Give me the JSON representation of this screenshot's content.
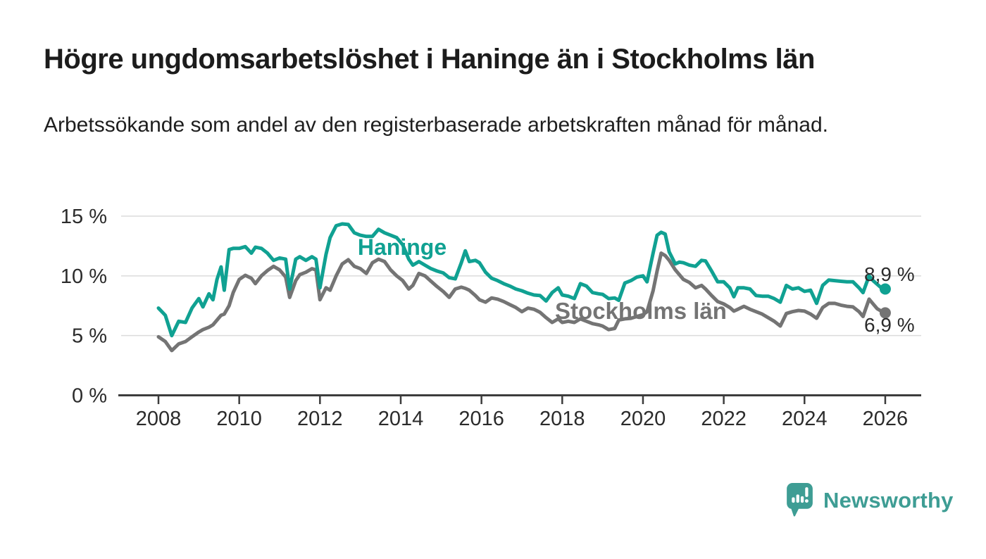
{
  "page": {
    "title": "Högre ungdomsarbetslöshet i Haninge än i Stockholms län",
    "subtitle": "Arbetssökande som andel av den registerbaserade arbetskraften månad för månad.",
    "brand": "Newsworthy"
  },
  "colors": {
    "haninge": "#10a192",
    "stockholm": "#747474",
    "grid": "#dbdbdb",
    "axis": "#3c3c3c",
    "tick_text": "#2b2b2b",
    "end_label_text": "#2b2b2b",
    "logo": "#3e9d94",
    "background": "#ffffff"
  },
  "chart_data": {
    "type": "line",
    "title": "Högre ungdomsarbetslöshet i Haninge än i Stockholms län",
    "subtitle": "Arbetssökande som andel av den registerbaserade arbetskraften månad för månad.",
    "unit": "%",
    "xlabel": "",
    "ylabel": "",
    "xlim": [
      2008,
      2026.9
    ],
    "ylim": [
      0,
      15.8
    ],
    "grid": "horizontal",
    "legend": "inline-labels",
    "x_ticks": [
      2008,
      2010,
      2012,
      2014,
      2016,
      2018,
      2020,
      2022,
      2024,
      2026
    ],
    "y_ticks": [
      0,
      5,
      10,
      15
    ],
    "y_tick_labels": [
      "0 %",
      "5 %",
      "10 %",
      "15 %"
    ],
    "x": [
      2008.0,
      2008.17,
      2008.33,
      2008.5,
      2008.67,
      2008.83,
      2009.0,
      2009.1,
      2009.25,
      2009.35,
      2009.45,
      2009.55,
      2009.63,
      2009.75,
      2009.85,
      2010.0,
      2010.15,
      2010.3,
      2010.4,
      2010.55,
      2010.7,
      2010.85,
      2011.0,
      2011.15,
      2011.25,
      2011.4,
      2011.5,
      2011.65,
      2011.8,
      2011.9,
      2012.0,
      2012.15,
      2012.25,
      2012.4,
      2012.55,
      2012.7,
      2012.85,
      2013.0,
      2013.15,
      2013.3,
      2013.45,
      2013.6,
      2013.75,
      2013.9,
      2014.05,
      2014.2,
      2014.3,
      2014.45,
      2014.6,
      2014.75,
      2014.9,
      2015.05,
      2015.2,
      2015.35,
      2015.5,
      2015.6,
      2015.7,
      2015.85,
      2015.95,
      2016.1,
      2016.25,
      2016.4,
      2016.55,
      2016.7,
      2016.85,
      2017.0,
      2017.15,
      2017.3,
      2017.45,
      2017.6,
      2017.75,
      2017.9,
      2018.0,
      2018.15,
      2018.3,
      2018.45,
      2018.6,
      2018.75,
      2018.9,
      2019.0,
      2019.15,
      2019.3,
      2019.4,
      2019.55,
      2019.7,
      2019.85,
      2020.0,
      2020.1,
      2020.25,
      2020.35,
      2020.45,
      2020.55,
      2020.65,
      2020.8,
      2020.9,
      2021.0,
      2021.15,
      2021.3,
      2021.45,
      2021.55,
      2021.7,
      2021.85,
      2022.0,
      2022.15,
      2022.25,
      2022.35,
      2022.5,
      2022.65,
      2022.8,
      2022.95,
      2023.1,
      2023.25,
      2023.4,
      2023.55,
      2023.7,
      2023.85,
      2024.0,
      2024.15,
      2024.3,
      2024.45,
      2024.6,
      2024.75,
      2024.9,
      2025.05,
      2025.2,
      2025.35,
      2025.45,
      2025.6,
      2025.7,
      2025.8,
      2025.9,
      2026.0
    ],
    "series": [
      {
        "name": "Haninge",
        "color": "#10a192",
        "end_label": "8,9 %",
        "last_value": 8.9,
        "values": [
          7.3,
          6.7,
          5.0,
          6.2,
          6.1,
          7.3,
          8.1,
          7.4,
          8.5,
          8.0,
          9.7,
          10.75,
          8.8,
          12.2,
          12.3,
          12.3,
          12.45,
          11.9,
          12.4,
          12.3,
          11.9,
          11.3,
          11.5,
          11.4,
          8.9,
          11.4,
          11.6,
          11.3,
          11.6,
          11.4,
          9.0,
          11.8,
          13.2,
          14.2,
          14.35,
          14.3,
          13.6,
          13.4,
          13.3,
          13.3,
          13.9,
          13.6,
          13.4,
          13.2,
          12.6,
          11.4,
          10.9,
          11.2,
          10.9,
          10.6,
          10.4,
          10.25,
          9.85,
          9.75,
          11.1,
          12.1,
          11.2,
          11.3,
          11.1,
          10.3,
          9.8,
          9.6,
          9.35,
          9.15,
          8.9,
          8.75,
          8.55,
          8.4,
          8.35,
          7.9,
          8.6,
          9.0,
          8.4,
          8.3,
          8.1,
          9.35,
          9.15,
          8.6,
          8.5,
          8.45,
          8.1,
          8.15,
          7.95,
          9.4,
          9.6,
          9.9,
          10.0,
          9.5,
          11.9,
          13.4,
          13.65,
          13.5,
          12.0,
          11.0,
          11.15,
          11.1,
          10.9,
          10.8,
          11.3,
          11.25,
          10.4,
          9.5,
          9.5,
          9.0,
          8.25,
          9.0,
          9.0,
          8.9,
          8.35,
          8.3,
          8.3,
          8.1,
          7.8,
          9.2,
          8.9,
          9.0,
          8.7,
          8.8,
          7.7,
          9.2,
          9.65,
          9.6,
          9.55,
          9.5,
          9.5,
          9.0,
          8.6,
          10.0,
          9.6,
          9.3,
          9.0,
          8.9
        ]
      },
      {
        "name": "Stockholms län",
        "color": "#747474",
        "end_label": "6,9 %",
        "last_value": 6.9,
        "values": [
          4.9,
          4.5,
          3.75,
          4.3,
          4.5,
          4.9,
          5.3,
          5.5,
          5.7,
          5.9,
          6.3,
          6.7,
          6.8,
          7.5,
          8.6,
          9.7,
          10.05,
          9.8,
          9.35,
          10.0,
          10.45,
          10.8,
          10.5,
          9.9,
          8.2,
          9.6,
          10.1,
          10.3,
          10.6,
          10.5,
          8.0,
          9.0,
          8.8,
          10.0,
          11.0,
          11.35,
          10.8,
          10.6,
          10.2,
          11.1,
          11.4,
          11.2,
          10.5,
          10.0,
          9.6,
          8.9,
          9.2,
          10.2,
          10.0,
          9.55,
          9.1,
          8.7,
          8.2,
          8.9,
          9.05,
          8.95,
          8.8,
          8.35,
          8.0,
          7.8,
          8.15,
          8.05,
          7.85,
          7.6,
          7.35,
          7.0,
          7.3,
          7.2,
          6.95,
          6.5,
          6.1,
          6.4,
          6.1,
          6.2,
          6.1,
          6.4,
          6.2,
          6.0,
          5.9,
          5.8,
          5.5,
          5.6,
          6.3,
          6.4,
          6.45,
          6.6,
          6.75,
          7.0,
          8.75,
          10.4,
          11.9,
          11.7,
          11.3,
          10.5,
          10.1,
          9.7,
          9.45,
          9.0,
          9.2,
          8.9,
          8.35,
          7.85,
          7.65,
          7.35,
          7.05,
          7.2,
          7.45,
          7.2,
          7.0,
          6.8,
          6.5,
          6.2,
          5.8,
          6.85,
          7.0,
          7.1,
          7.05,
          6.8,
          6.45,
          7.35,
          7.7,
          7.7,
          7.55,
          7.45,
          7.4,
          7.0,
          6.6,
          8.05,
          7.65,
          7.25,
          7.05,
          6.9
        ]
      }
    ]
  }
}
